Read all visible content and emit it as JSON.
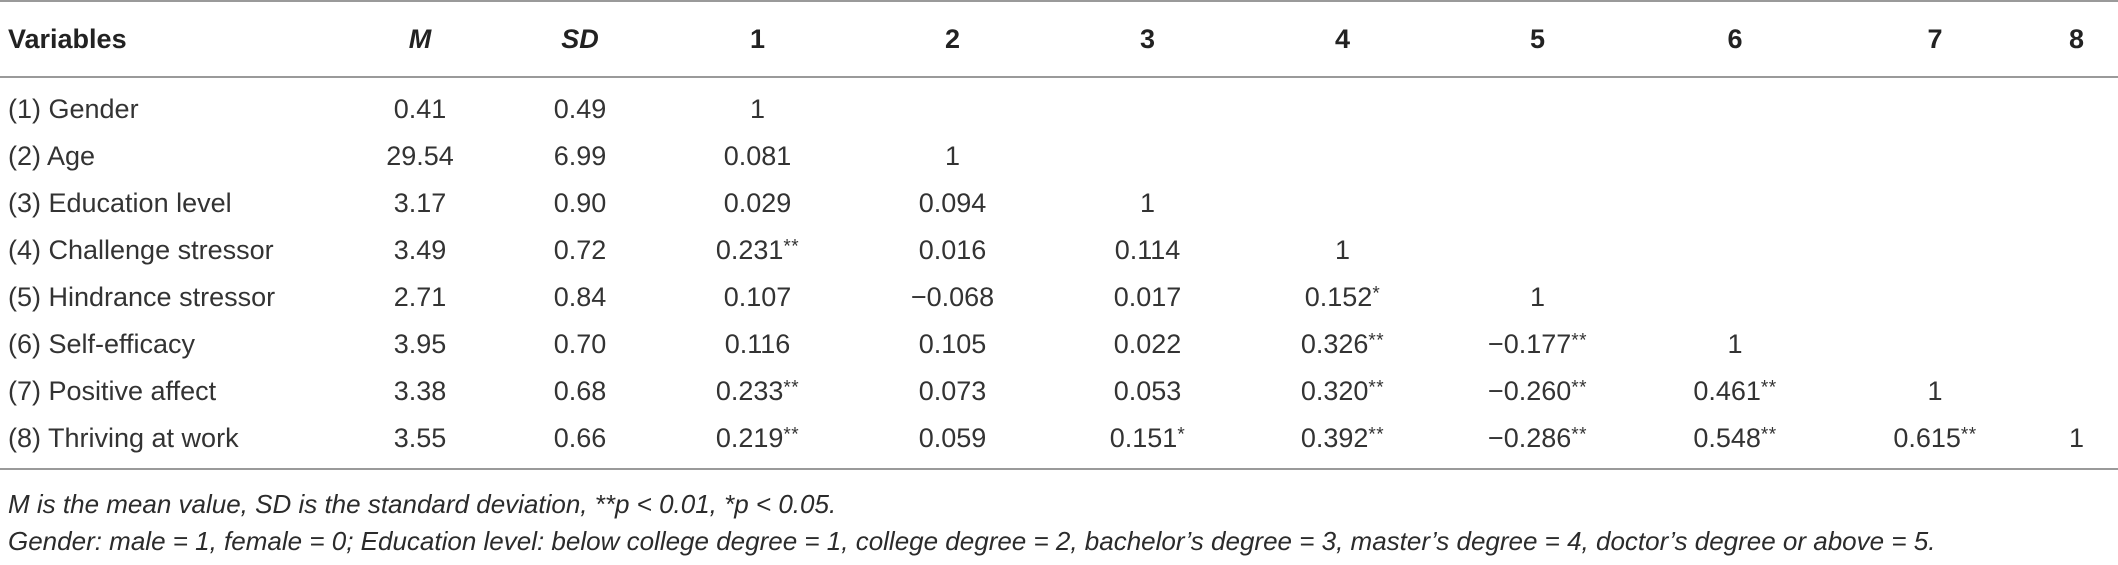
{
  "table": {
    "headers": [
      "Variables",
      "M",
      "SD",
      "1",
      "2",
      "3",
      "4",
      "5",
      "6",
      "7",
      "8"
    ],
    "rows": [
      {
        "variable": "(1) Gender",
        "M": "0.41",
        "SD": "0.49",
        "cells": [
          {
            "v": "1",
            "s": ""
          },
          {
            "v": "",
            "s": ""
          },
          {
            "v": "",
            "s": ""
          },
          {
            "v": "",
            "s": ""
          },
          {
            "v": "",
            "s": ""
          },
          {
            "v": "",
            "s": ""
          },
          {
            "v": "",
            "s": ""
          },
          {
            "v": "",
            "s": ""
          }
        ]
      },
      {
        "variable": "(2) Age",
        "M": "29.54",
        "SD": "6.99",
        "cells": [
          {
            "v": "0.081",
            "s": ""
          },
          {
            "v": "1",
            "s": ""
          },
          {
            "v": "",
            "s": ""
          },
          {
            "v": "",
            "s": ""
          },
          {
            "v": "",
            "s": ""
          },
          {
            "v": "",
            "s": ""
          },
          {
            "v": "",
            "s": ""
          },
          {
            "v": "",
            "s": ""
          }
        ]
      },
      {
        "variable": "(3) Education level",
        "M": "3.17",
        "SD": "0.90",
        "cells": [
          {
            "v": "0.029",
            "s": ""
          },
          {
            "v": "0.094",
            "s": ""
          },
          {
            "v": "1",
            "s": ""
          },
          {
            "v": "",
            "s": ""
          },
          {
            "v": "",
            "s": ""
          },
          {
            "v": "",
            "s": ""
          },
          {
            "v": "",
            "s": ""
          },
          {
            "v": "",
            "s": ""
          }
        ]
      },
      {
        "variable": "(4) Challenge stressor",
        "M": "3.49",
        "SD": "0.72",
        "cells": [
          {
            "v": "0.231",
            "s": "**"
          },
          {
            "v": "0.016",
            "s": ""
          },
          {
            "v": "0.114",
            "s": ""
          },
          {
            "v": "1",
            "s": ""
          },
          {
            "v": "",
            "s": ""
          },
          {
            "v": "",
            "s": ""
          },
          {
            "v": "",
            "s": ""
          },
          {
            "v": "",
            "s": ""
          }
        ]
      },
      {
        "variable": "(5) Hindrance stressor",
        "M": "2.71",
        "SD": "0.84",
        "cells": [
          {
            "v": "0.107",
            "s": ""
          },
          {
            "v": "−0.068",
            "s": ""
          },
          {
            "v": "0.017",
            "s": ""
          },
          {
            "v": "0.152",
            "s": "*"
          },
          {
            "v": "1",
            "s": ""
          },
          {
            "v": "",
            "s": ""
          },
          {
            "v": "",
            "s": ""
          },
          {
            "v": "",
            "s": ""
          }
        ]
      },
      {
        "variable": "(6) Self-efficacy",
        "M": "3.95",
        "SD": "0.70",
        "cells": [
          {
            "v": "0.116",
            "s": ""
          },
          {
            "v": "0.105",
            "s": ""
          },
          {
            "v": "0.022",
            "s": ""
          },
          {
            "v": "0.326",
            "s": "**"
          },
          {
            "v": "−0.177",
            "s": "**"
          },
          {
            "v": "1",
            "s": ""
          },
          {
            "v": "",
            "s": ""
          },
          {
            "v": "",
            "s": ""
          }
        ]
      },
      {
        "variable": "(7) Positive affect",
        "M": "3.38",
        "SD": "0.68",
        "cells": [
          {
            "v": "0.233",
            "s": "**"
          },
          {
            "v": "0.073",
            "s": ""
          },
          {
            "v": "0.053",
            "s": ""
          },
          {
            "v": "0.320",
            "s": "**"
          },
          {
            "v": "−0.260",
            "s": "**"
          },
          {
            "v": "0.461",
            "s": "**"
          },
          {
            "v": "1",
            "s": ""
          },
          {
            "v": "",
            "s": ""
          }
        ]
      },
      {
        "variable": "(8) Thriving at work",
        "M": "3.55",
        "SD": "0.66",
        "cells": [
          {
            "v": "0.219",
            "s": "**"
          },
          {
            "v": "0.059",
            "s": ""
          },
          {
            "v": "0.151",
            "s": "*"
          },
          {
            "v": "0.392",
            "s": "**"
          },
          {
            "v": "−0.286",
            "s": "**"
          },
          {
            "v": "0.548",
            "s": "**"
          },
          {
            "v": "0.615",
            "s": "**"
          },
          {
            "v": "1",
            "s": ""
          }
        ]
      }
    ]
  },
  "notes": {
    "line1": "M is the mean value, SD is the standard deviation, **p < 0.01, *p < 0.05.",
    "line2": "Gender: male = 1, female = 0; Education level: below college degree = 1, college degree = 2, bachelor’s degree = 3, master’s degree = 4, doctor’s degree or above = 5."
  }
}
